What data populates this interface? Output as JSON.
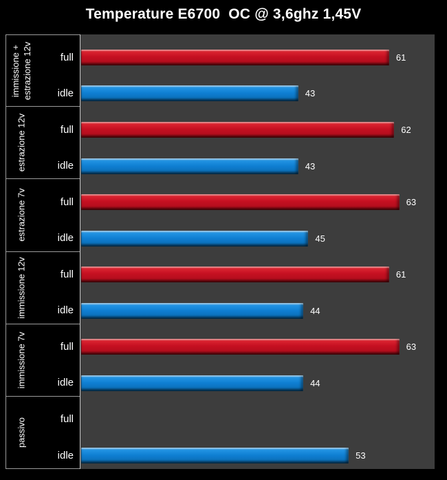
{
  "page": {
    "background": "#000000"
  },
  "chart_data": {
    "type": "bar",
    "orientation": "horizontal",
    "title": "Temperature E6700  OC @ 3,6ghz 1,45V",
    "title_color": "#ffffff",
    "outer_background": "#000000",
    "plot_background": "#3d3d3d",
    "gridline_color": "#9b9b9b",
    "label_color": "#ffffff",
    "categories": [
      "immissione + estrazione 12v",
      "estrazione 12v",
      "estrazione 7v",
      "immissione 12v",
      "immissione 7v",
      "passivo"
    ],
    "row_labels": [
      "full",
      "idle"
    ],
    "series": [
      {
        "name": "full",
        "color": "#c51021",
        "values": [
          61,
          62,
          63,
          61,
          63,
          null
        ]
      },
      {
        "name": "idle",
        "color": "#0f7fd2",
        "values": [
          43,
          43,
          45,
          44,
          44,
          53
        ]
      }
    ],
    "xlim": [
      0,
      70
    ],
    "legend": "none",
    "value_labels": true,
    "grid": false
  }
}
